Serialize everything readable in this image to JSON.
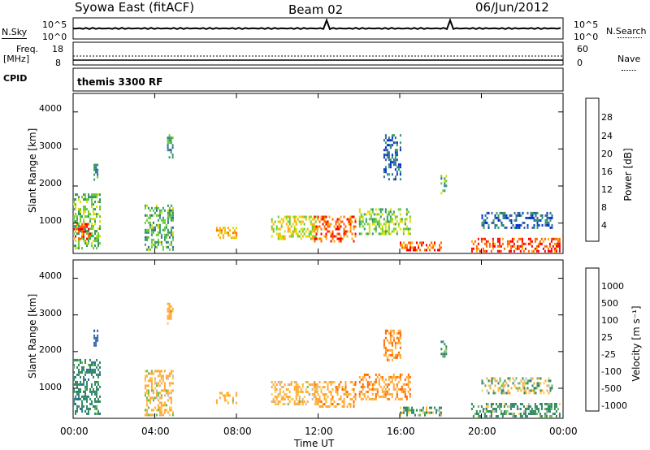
{
  "header": {
    "station": "Syowa East (fitACF)",
    "beam": "Beam 02",
    "date": "06/Jun/2012"
  },
  "top_panels": {
    "nsky_label": "N.Sky",
    "nsky_ticks": [
      "10^5",
      "10^0"
    ],
    "nsearch_label": "N.Search",
    "nsearch_ticks": [
      "10^5",
      "10^0"
    ],
    "freq_label": "Freq.",
    "freq_unit": "[MHz]",
    "freq_ticks": [
      "18",
      "8"
    ],
    "nave_label": "Nave",
    "nave_ticks": [
      "60",
      "0"
    ],
    "cpid_label": "CPID",
    "cpid_value": "themis 3300 RF"
  },
  "power_colorbar": {
    "label": "Power [dB]",
    "ticks": [
      "28",
      "24",
      "20",
      "16",
      "12",
      "8",
      "4"
    ],
    "colors": [
      "#ff0000",
      "#ff6600",
      "#ffaa00",
      "#dddd00",
      "#66cc33",
      "#339966",
      "#336699",
      "#0033cc"
    ]
  },
  "velocity_colorbar": {
    "label": "Velocity [m s⁻¹]",
    "ticks": [
      "1000",
      "500",
      "100",
      "25",
      "-25",
      "-100",
      "-500",
      "-1000"
    ],
    "colors": [
      "#2244aa",
      "#3366aa",
      "#338866",
      "#66bb44",
      "#bbbbbb",
      "#ffcc44",
      "#ffaa33",
      "#ff6600",
      "#ff0000"
    ]
  },
  "axes": {
    "ylabel": "Slant Range [km]",
    "xlabel": "Time UT",
    "yticks": [
      "4000",
      "3000",
      "2000",
      "1000"
    ],
    "xticks": [
      "00:00",
      "04:00",
      "08:00",
      "12:00",
      "16:00",
      "20:00",
      "00:00"
    ]
  },
  "chart_data": [
    {
      "type": "heatmap",
      "title": "",
      "xlabel": "",
      "ylabel": "Slant Range [km]",
      "x_range_hours": [
        0,
        24
      ],
      "ylim": [
        180,
        4500
      ],
      "colorbar": "Power [dB]",
      "clim": [
        0,
        32
      ],
      "regions": [
        {
          "t": [
            0.0,
            1.3
          ],
          "r": [
            300,
            1800
          ],
          "v": 14
        },
        {
          "t": [
            0.0,
            0.8
          ],
          "r": [
            600,
            1000
          ],
          "v": 28
        },
        {
          "t": [
            1.0,
            1.2
          ],
          "r": [
            2200,
            2600
          ],
          "v": 8
        },
        {
          "t": [
            3.5,
            4.9
          ],
          "r": [
            300,
            1500
          ],
          "v": 12
        },
        {
          "t": [
            4.6,
            4.9
          ],
          "r": [
            2800,
            3400
          ],
          "v": 10
        },
        {
          "t": [
            7.0,
            8.0
          ],
          "r": [
            600,
            900
          ],
          "v": 22
        },
        {
          "t": [
            9.7,
            12.0
          ],
          "r": [
            600,
            1200
          ],
          "v": 18
        },
        {
          "t": [
            11.8,
            13.8
          ],
          "r": [
            500,
            1200
          ],
          "v": 26
        },
        {
          "t": [
            14.0,
            16.5
          ],
          "r": [
            700,
            1400
          ],
          "v": 14
        },
        {
          "t": [
            15.2,
            16.0
          ],
          "r": [
            2200,
            3400
          ],
          "v": 6
        },
        {
          "t": [
            16.0,
            18.0
          ],
          "r": [
            250,
            500
          ],
          "v": 26
        },
        {
          "t": [
            18.0,
            18.3
          ],
          "r": [
            1800,
            2300
          ],
          "v": 12
        },
        {
          "t": [
            19.5,
            23.8
          ],
          "r": [
            250,
            600
          ],
          "v": 28
        },
        {
          "t": [
            20.0,
            23.5
          ],
          "r": [
            900,
            1300
          ],
          "v": 6
        }
      ]
    },
    {
      "type": "heatmap",
      "title": "",
      "xlabel": "Time UT",
      "ylabel": "Slant Range [km]",
      "x_range_hours": [
        0,
        24
      ],
      "ylim": [
        180,
        4500
      ],
      "colorbar": "Velocity [m s⁻¹]",
      "clim": [
        -1000,
        1000
      ],
      "regions": [
        {
          "t": [
            0.0,
            1.3
          ],
          "r": [
            300,
            1800
          ],
          "v": 300
        },
        {
          "t": [
            1.0,
            1.2
          ],
          "r": [
            2200,
            2600
          ],
          "v": 800
        },
        {
          "t": [
            3.5,
            4.9
          ],
          "r": [
            300,
            1500
          ],
          "v": -150
        },
        {
          "t": [
            4.6,
            4.9
          ],
          "r": [
            2800,
            3400
          ],
          "v": -300
        },
        {
          "t": [
            7.0,
            8.0
          ],
          "r": [
            600,
            900
          ],
          "v": -150
        },
        {
          "t": [
            9.7,
            12.0
          ],
          "r": [
            600,
            1200
          ],
          "v": -200
        },
        {
          "t": [
            11.8,
            13.8
          ],
          "r": [
            500,
            1200
          ],
          "v": -300
        },
        {
          "t": [
            14.0,
            16.5
          ],
          "r": [
            700,
            1400
          ],
          "v": -400
        },
        {
          "t": [
            15.2,
            16.0
          ],
          "r": [
            1800,
            2600
          ],
          "v": -500
        },
        {
          "t": [
            16.0,
            18.0
          ],
          "r": [
            250,
            500
          ],
          "v": 100
        },
        {
          "t": [
            18.0,
            18.3
          ],
          "r": [
            1800,
            2300
          ],
          "v": 200
        },
        {
          "t": [
            19.5,
            23.8
          ],
          "r": [
            250,
            600
          ],
          "v": 200
        },
        {
          "t": [
            20.0,
            23.5
          ],
          "r": [
            900,
            1300
          ],
          "v": 0
        }
      ]
    }
  ]
}
